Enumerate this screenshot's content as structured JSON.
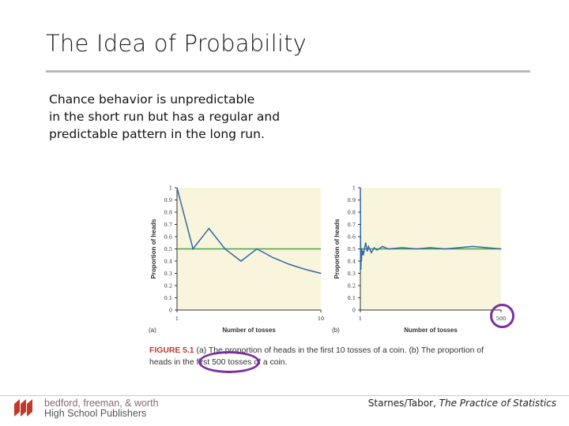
{
  "slide": {
    "title": "The Idea of Probability",
    "body_lines": [
      "Chance behavior is unpredictable",
      "in the short run but has a regular and",
      "predictable pattern in the long run."
    ],
    "caption_label": "FIGURE 5.1",
    "caption_text": " (a) The proportion of heads in the first 10 tosses of a coin. (b) The proportion of heads in the first 500 tosses of a coin.",
    "footer_publisher_line1": "bedford, freeman, & worth",
    "footer_publisher_line2": "High School Publishers",
    "footer_credit_authors": "Starnes/Tabor, ",
    "footer_credit_book": "The Practice of Statistics",
    "colors": {
      "panel_background": "#f8f5dc",
      "series_line": "#2f6aa6",
      "reference_line": "#4aa34a",
      "highlight_circle": "#7b2fa0",
      "caption_label": "#c0392b"
    }
  },
  "chart_data": [
    {
      "type": "line",
      "panel_label": "(a)",
      "xlabel": "Number of tosses",
      "ylabel": "Proportion of heads",
      "xlim": [
        1,
        10
      ],
      "ylim": [
        0,
        1
      ],
      "x_ticks": [
        "1",
        "10"
      ],
      "y_ticks": [
        "0",
        "0.1",
        "0.2",
        "0.3",
        "0.4",
        "0.5",
        "0.6",
        "0.7",
        "0.8",
        "0.9",
        "1"
      ],
      "reference_y": 0.5,
      "series": [
        {
          "x": [
            1,
            2,
            3,
            4,
            5,
            6,
            7,
            8,
            9,
            10
          ],
          "values": [
            1,
            0.5,
            0.667,
            0.5,
            0.4,
            0.5,
            0.429,
            0.375,
            0.333,
            0.3
          ]
        }
      ]
    },
    {
      "type": "line",
      "panel_label": "(b)",
      "xlabel": "Number of tosses",
      "ylabel": "Proportion of heads",
      "xlim": [
        1,
        500
      ],
      "ylim": [
        0,
        1
      ],
      "x_ticks": [
        "1",
        "500"
      ],
      "y_ticks": [
        "0",
        "0.1",
        "0.2",
        "0.3",
        "0.4",
        "0.5",
        "0.6",
        "0.7",
        "0.8",
        "0.9",
        "1"
      ],
      "reference_y": 0.5,
      "series": [
        {
          "x": [
            1,
            2,
            3,
            4,
            5,
            6,
            8,
            10,
            12,
            15,
            20,
            25,
            30,
            40,
            50,
            60,
            80,
            100,
            150,
            200,
            250,
            300,
            350,
            400,
            450,
            500
          ],
          "values": [
            1,
            0.5,
            0.333,
            0.5,
            0.4,
            0.5,
            0.45,
            0.48,
            0.45,
            0.5,
            0.55,
            0.48,
            0.52,
            0.47,
            0.51,
            0.49,
            0.52,
            0.5,
            0.51,
            0.5,
            0.51,
            0.5,
            0.51,
            0.52,
            0.51,
            0.5
          ]
        }
      ]
    }
  ]
}
